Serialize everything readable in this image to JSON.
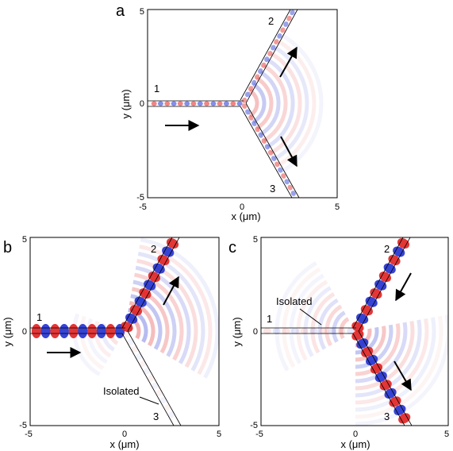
{
  "figure": {
    "panels": [
      {
        "id": "a",
        "letter": "a",
        "xlabel": "x (μm)",
        "ylabel": "y (μm)",
        "xticks": [
          "-5",
          "0",
          "5"
        ],
        "yticks": [
          "-5",
          "0",
          "5"
        ],
        "ports": [
          "1",
          "2",
          "3"
        ],
        "note": "",
        "field_color_positive": "#e02020",
        "field_color_negative": "#2030d0"
      },
      {
        "id": "b",
        "letter": "b",
        "xlabel": "x (μm)",
        "ylabel": "y (μm)",
        "xticks": [
          "-5",
          "0",
          "5"
        ],
        "yticks": [
          "-5",
          "0",
          "5"
        ],
        "ports": [
          "1",
          "2",
          "3"
        ],
        "note": "Isolated",
        "field_color_positive": "#e02020",
        "field_color_negative": "#2030d0"
      },
      {
        "id": "c",
        "letter": "c",
        "xlabel": "x (μm)",
        "ylabel": "y (μm)",
        "xticks": [
          "-5",
          "0",
          "5"
        ],
        "yticks": [
          "-5",
          "0",
          "5"
        ],
        "ports": [
          "1",
          "2",
          "3"
        ],
        "note": "Isolated",
        "field_color_positive": "#e02020",
        "field_color_negative": "#2030d0"
      }
    ]
  }
}
